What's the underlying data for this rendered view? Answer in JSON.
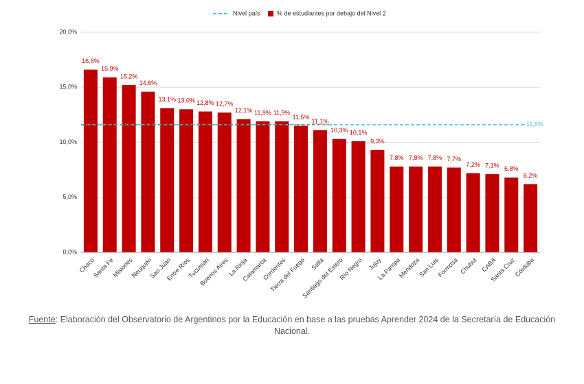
{
  "chart_data": {
    "type": "bar",
    "categories": [
      "Chaco",
      "Santa Fe",
      "Misiones",
      "Neuquén",
      "San Juan",
      "Entre Ríos",
      "Tucumán",
      "Buenos Aires",
      "La Rioja",
      "Catamarca",
      "Corrientes",
      "Tierra del Fuego",
      "Salta",
      "Santiago del Estero",
      "Río Negro",
      "Jujuy",
      "La Pampa",
      "Mendoza",
      "San Luis",
      "Formosa",
      "Chubut",
      "CABA",
      "Santa Cruz",
      "Córdoba"
    ],
    "series": [
      {
        "name": "% de estudiantes por debajo del Nivel 2",
        "color": "#c00000",
        "values": [
          16.6,
          15.9,
          15.2,
          14.6,
          13.1,
          13.0,
          12.8,
          12.7,
          12.1,
          11.9,
          11.9,
          11.5,
          11.1,
          10.3,
          10.1,
          9.3,
          7.8,
          7.8,
          7.8,
          7.7,
          7.2,
          7.1,
          6.8,
          6.2
        ],
        "value_labels": [
          "16,6%",
          "15,9%",
          "15,2%",
          "14,6%",
          "13,1%",
          "13,0%",
          "12,8%",
          "12,7%",
          "12,1%",
          "11,9%",
          "11,9%",
          "11,5%",
          "11,1%",
          "10,3%",
          "10,1%",
          "9,3%",
          "7,8%",
          "7,8%",
          "7,8%",
          "7,7%",
          "7,2%",
          "7,1%",
          "6,8%",
          "6,2%"
        ]
      }
    ],
    "reference_line": {
      "name": "Nivel país",
      "value": 11.6,
      "label": "11,6%",
      "color": "#4fc3d9"
    },
    "ylim": [
      0,
      20
    ],
    "yticks": [
      {
        "value": 0,
        "label": "0,0%"
      },
      {
        "value": 5,
        "label": "5,0%"
      },
      {
        "value": 10,
        "label": "10,0%"
      },
      {
        "value": 15,
        "label": "15,0%"
      },
      {
        "value": 20,
        "label": "20,0%"
      }
    ],
    "grid": true
  },
  "source": {
    "label": "Fuente",
    "text": ": Elaboración del Observatorio de Argentinos por la Educación en base a las pruebas Aprender 2024 de la Secretaría de Educación Nacional."
  }
}
